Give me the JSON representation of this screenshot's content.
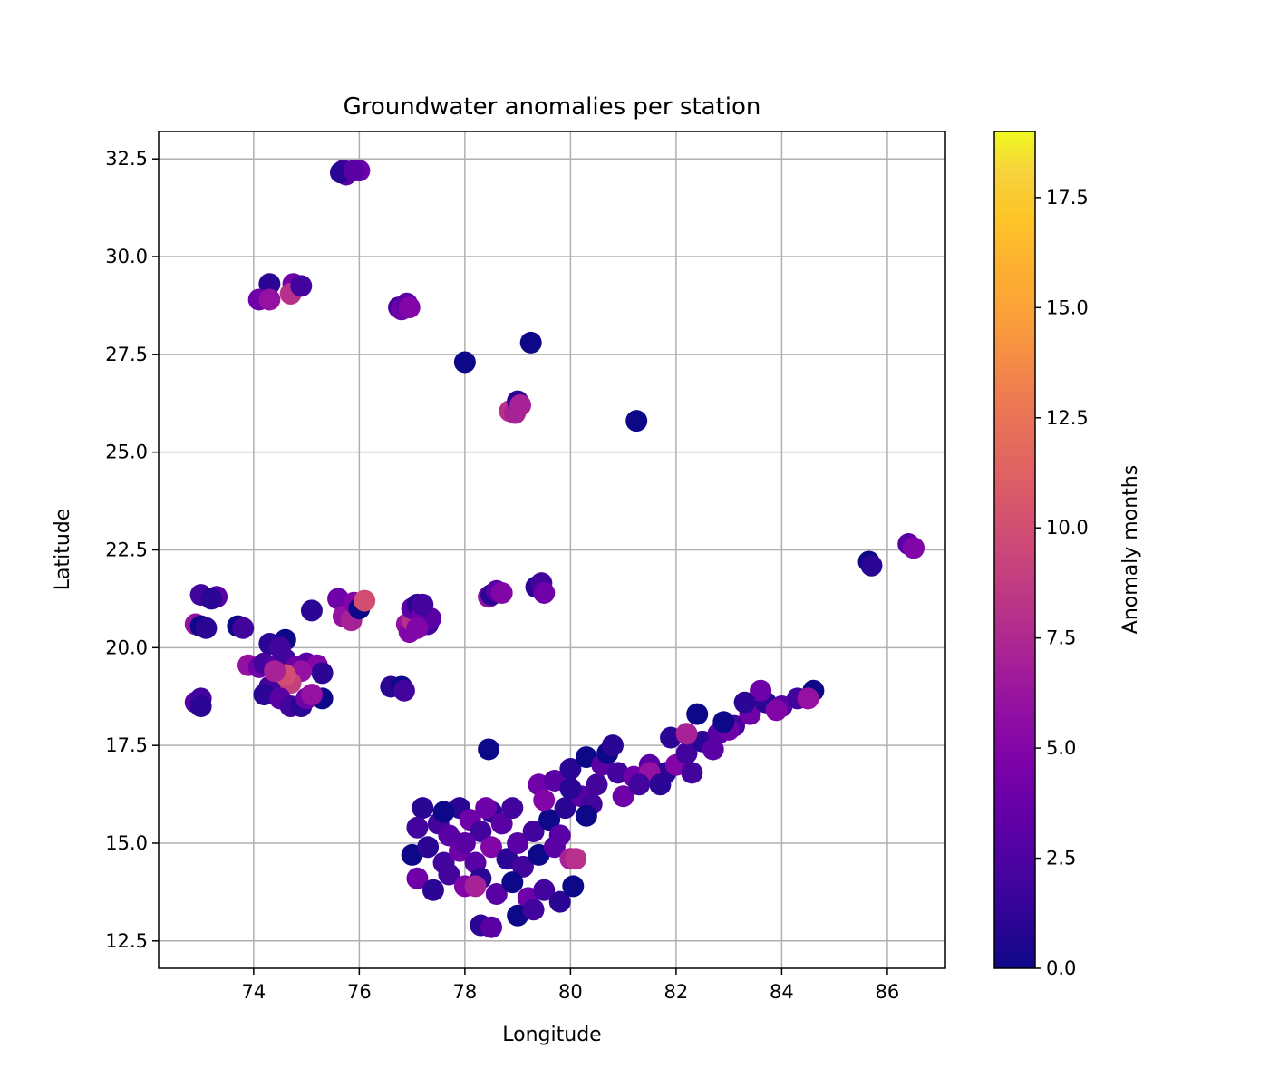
{
  "chart_data": {
    "type": "scatter",
    "title": "Groundwater anomalies per station",
    "xlabel": "Longitude",
    "ylabel": "Latitude",
    "xlim": [
      72.2,
      87.1
    ],
    "ylim": [
      11.8,
      33.2
    ],
    "xticks": [
      74,
      76,
      78,
      80,
      82,
      84,
      86
    ],
    "yticks": [
      12.5,
      15.0,
      17.5,
      20.0,
      22.5,
      25.0,
      27.5,
      30.0,
      32.5
    ],
    "grid": true,
    "colormap": "plasma",
    "colorbar": {
      "label": "Anomaly months",
      "range": [
        0.0,
        19.0
      ],
      "ticks": [
        0.0,
        2.5,
        5.0,
        7.5,
        10.0,
        12.5,
        15.0,
        17.5
      ]
    },
    "colors": {
      "plasma": [
        "#0d0887",
        "#2a0593",
        "#41049d",
        "#5601a4",
        "#6a00a8",
        "#7e03a8",
        "#8f0da4",
        "#a11b9b",
        "#b12a90",
        "#bf3984",
        "#cc4778",
        "#d6556d",
        "#e16462",
        "#e97158",
        "#f1814d",
        "#f89540",
        "#fca636",
        "#fdb32f",
        "#fdc627",
        "#f7d13d",
        "#f0f921"
      ],
      "grid": "#b0b0b0"
    },
    "points": [
      [
        75.7,
        32.2,
        2
      ],
      [
        75.75,
        32.1,
        3
      ],
      [
        75.65,
        32.15,
        1
      ],
      [
        76.0,
        32.2,
        4
      ],
      [
        75.9,
        32.2,
        3
      ],
      [
        74.3,
        29.3,
        1
      ],
      [
        74.1,
        28.9,
        4
      ],
      [
        74.3,
        28.9,
        6
      ],
      [
        74.75,
        29.3,
        4
      ],
      [
        74.7,
        29.05,
        8
      ],
      [
        74.9,
        29.25,
        2
      ],
      [
        76.75,
        28.7,
        2
      ],
      [
        76.8,
        28.65,
        4
      ],
      [
        76.9,
        28.8,
        3
      ],
      [
        76.95,
        28.7,
        5
      ],
      [
        78.0,
        27.3,
        0
      ],
      [
        79.25,
        27.8,
        0
      ],
      [
        81.25,
        25.8,
        0
      ],
      [
        78.85,
        26.05,
        8
      ],
      [
        78.95,
        26.0,
        7
      ],
      [
        79.0,
        26.3,
        1
      ],
      [
        79.05,
        26.2,
        7
      ],
      [
        85.65,
        22.2,
        0
      ],
      [
        85.7,
        22.1,
        1
      ],
      [
        86.4,
        22.65,
        3
      ],
      [
        86.5,
        22.55,
        5
      ],
      [
        73.0,
        21.35,
        2
      ],
      [
        73.3,
        21.3,
        3
      ],
      [
        73.2,
        21.25,
        1
      ],
      [
        72.9,
        20.6,
        6
      ],
      [
        73.0,
        20.55,
        0
      ],
      [
        73.1,
        20.5,
        1
      ],
      [
        73.7,
        20.55,
        0
      ],
      [
        73.8,
        20.5,
        2
      ],
      [
        72.9,
        18.6,
        3
      ],
      [
        73.0,
        18.7,
        2
      ],
      [
        73.0,
        18.5,
        1
      ],
      [
        74.3,
        20.1,
        1
      ],
      [
        74.6,
        20.2,
        0
      ],
      [
        74.5,
        20.0,
        2
      ],
      [
        73.9,
        19.55,
        6
      ],
      [
        74.1,
        19.5,
        4
      ],
      [
        74.2,
        19.6,
        2
      ],
      [
        74.4,
        19.5,
        3
      ],
      [
        74.6,
        19.7,
        2
      ],
      [
        74.8,
        19.5,
        4
      ],
      [
        75.0,
        19.6,
        3
      ],
      [
        75.2,
        19.55,
        5
      ],
      [
        75.3,
        19.35,
        1
      ],
      [
        74.9,
        19.4,
        6
      ],
      [
        74.5,
        19.2,
        8
      ],
      [
        74.7,
        19.1,
        9
      ],
      [
        74.3,
        19.0,
        2
      ],
      [
        74.2,
        18.8,
        1
      ],
      [
        74.5,
        18.7,
        3
      ],
      [
        74.7,
        18.5,
        2
      ],
      [
        74.9,
        18.5,
        1
      ],
      [
        75.0,
        18.7,
        4
      ],
      [
        75.3,
        18.7,
        0
      ],
      [
        75.1,
        18.8,
        6
      ],
      [
        74.6,
        19.3,
        10
      ],
      [
        74.4,
        19.4,
        7
      ],
      [
        75.1,
        20.95,
        1
      ],
      [
        75.6,
        21.25,
        4
      ],
      [
        75.7,
        20.8,
        6
      ],
      [
        75.85,
        20.7,
        7
      ],
      [
        75.9,
        21.15,
        5
      ],
      [
        76.0,
        21.0,
        0
      ],
      [
        76.1,
        21.2,
        10
      ],
      [
        76.6,
        19.0,
        1
      ],
      [
        76.8,
        19.0,
        0
      ],
      [
        76.85,
        18.9,
        2
      ],
      [
        76.9,
        20.6,
        6
      ],
      [
        76.95,
        20.4,
        5
      ],
      [
        77.0,
        20.7,
        8
      ],
      [
        77.0,
        21.0,
        3
      ],
      [
        77.1,
        21.1,
        1
      ],
      [
        77.2,
        20.9,
        4
      ],
      [
        77.3,
        20.6,
        2
      ],
      [
        77.35,
        20.75,
        3
      ],
      [
        77.1,
        20.5,
        5
      ],
      [
        77.2,
        21.1,
        2
      ],
      [
        78.45,
        21.3,
        6
      ],
      [
        78.5,
        21.35,
        1
      ],
      [
        78.6,
        21.45,
        3
      ],
      [
        78.7,
        21.4,
        5
      ],
      [
        79.35,
        21.55,
        1
      ],
      [
        79.45,
        21.65,
        2
      ],
      [
        79.5,
        21.4,
        4
      ],
      [
        78.45,
        17.4,
        0
      ],
      [
        77.5,
        15.5,
        2
      ],
      [
        77.7,
        15.2,
        3
      ],
      [
        77.9,
        15.9,
        1
      ],
      [
        78.1,
        15.6,
        4
      ],
      [
        78.3,
        15.3,
        2
      ],
      [
        78.5,
        15.8,
        1
      ],
      [
        78.7,
        15.5,
        3
      ],
      [
        78.9,
        15.9,
        2
      ],
      [
        77.0,
        14.7,
        0
      ],
      [
        77.3,
        14.9,
        1
      ],
      [
        77.6,
        14.5,
        2
      ],
      [
        77.9,
        14.8,
        4
      ],
      [
        78.2,
        14.5,
        3
      ],
      [
        78.5,
        14.9,
        5
      ],
      [
        78.8,
        14.6,
        1
      ],
      [
        79.1,
        14.4,
        2
      ],
      [
        79.4,
        14.7,
        0
      ],
      [
        79.7,
        14.9,
        3
      ],
      [
        80.0,
        14.6,
        7
      ],
      [
        77.1,
        14.1,
        4
      ],
      [
        77.4,
        13.8,
        1
      ],
      [
        77.7,
        14.2,
        2
      ],
      [
        78.0,
        13.9,
        5
      ],
      [
        78.3,
        14.1,
        1
      ],
      [
        78.6,
        13.7,
        3
      ],
      [
        78.9,
        14.0,
        0
      ],
      [
        79.2,
        13.6,
        4
      ],
      [
        79.5,
        13.8,
        2
      ],
      [
        79.8,
        13.5,
        1
      ],
      [
        80.05,
        13.9,
        0
      ],
      [
        78.3,
        12.9,
        1
      ],
      [
        78.5,
        12.85,
        3
      ],
      [
        79.0,
        13.15,
        0
      ],
      [
        79.3,
        13.3,
        2
      ],
      [
        79.0,
        15.0,
        3
      ],
      [
        79.3,
        15.3,
        2
      ],
      [
        79.6,
        15.6,
        0
      ],
      [
        79.9,
        15.9,
        1
      ],
      [
        80.2,
        16.2,
        3
      ],
      [
        80.5,
        16.5,
        2
      ],
      [
        79.4,
        16.5,
        4
      ],
      [
        79.7,
        16.6,
        3
      ],
      [
        80.0,
        16.9,
        1
      ],
      [
        80.3,
        17.2,
        0
      ],
      [
        80.6,
        17.0,
        3
      ],
      [
        80.9,
        16.8,
        2
      ],
      [
        81.2,
        16.7,
        4
      ],
      [
        81.5,
        17.0,
        3
      ],
      [
        81.8,
        16.8,
        1
      ],
      [
        82.0,
        17.0,
        5
      ],
      [
        82.2,
        17.3,
        2
      ],
      [
        82.5,
        17.6,
        1
      ],
      [
        82.8,
        17.8,
        3
      ],
      [
        83.1,
        18.0,
        2
      ],
      [
        83.4,
        18.3,
        4
      ],
      [
        83.7,
        18.6,
        1
      ],
      [
        84.0,
        18.5,
        3
      ],
      [
        84.3,
        18.7,
        2
      ],
      [
        84.6,
        18.9,
        0
      ],
      [
        84.5,
        18.7,
        6
      ],
      [
        83.6,
        18.9,
        4
      ],
      [
        83.9,
        18.4,
        5
      ],
      [
        83.3,
        18.6,
        1
      ],
      [
        82.4,
        18.3,
        0
      ],
      [
        81.9,
        17.7,
        1
      ],
      [
        82.2,
        17.8,
        7
      ],
      [
        80.7,
        17.3,
        0
      ],
      [
        80.8,
        17.5,
        1
      ],
      [
        81.0,
        16.2,
        4
      ],
      [
        81.5,
        16.8,
        6
      ],
      [
        80.4,
        16.0,
        2
      ],
      [
        80.0,
        16.4,
        1
      ],
      [
        80.3,
        15.7,
        0
      ],
      [
        79.8,
        15.2,
        3
      ],
      [
        80.1,
        14.6,
        8
      ],
      [
        79.5,
        16.1,
        5
      ],
      [
        77.6,
        15.8,
        0
      ],
      [
        77.2,
        15.9,
        1
      ],
      [
        78.0,
        15.0,
        3
      ],
      [
        78.2,
        13.9,
        7
      ],
      [
        77.1,
        15.4,
        2
      ],
      [
        78.4,
        15.9,
        4
      ],
      [
        82.3,
        16.8,
        2
      ],
      [
        82.7,
        17.4,
        3
      ],
      [
        83.0,
        17.9,
        4
      ],
      [
        81.7,
        16.5,
        1
      ],
      [
        81.3,
        16.5,
        2
      ],
      [
        82.9,
        18.1,
        0
      ]
    ]
  }
}
